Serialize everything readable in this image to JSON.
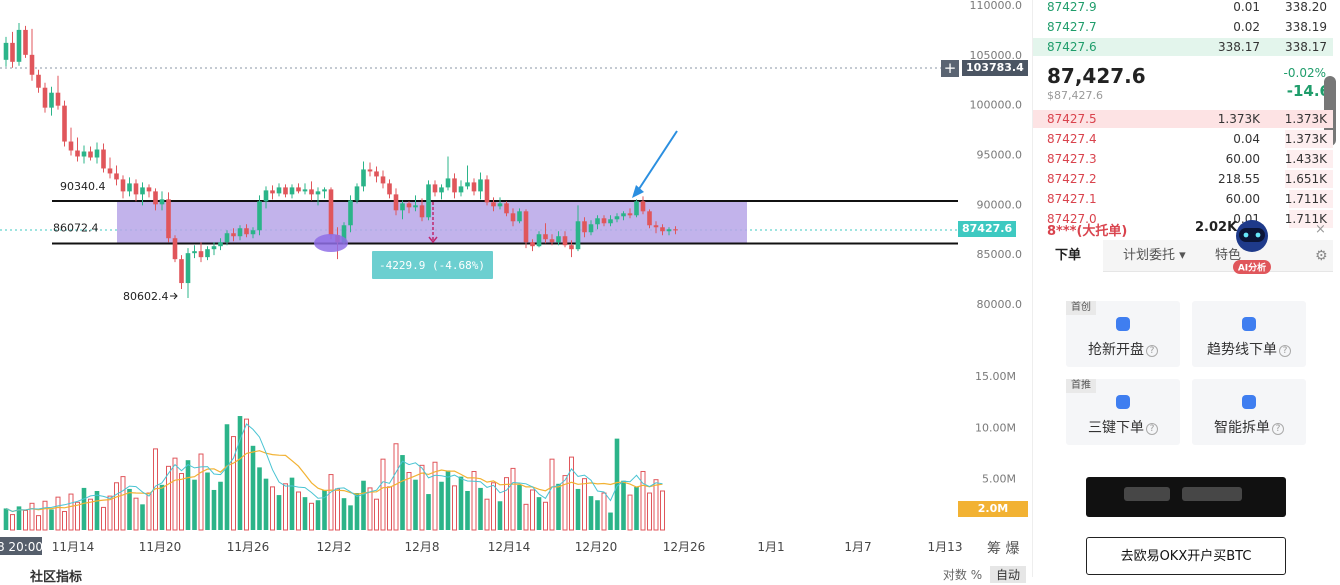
{
  "chart": {
    "price_axis": [
      "110000.0",
      "105000.0",
      "100000.0",
      "95000.0",
      "90000.0",
      "85000.0",
      "80000.0"
    ],
    "volume_axis": [
      "15.00M",
      "10.00M",
      "5.00M"
    ],
    "date_axis": [
      "8 20:00",
      "11月14",
      "11月20",
      "11月26",
      "12月2",
      "12月8",
      "12月14",
      "12月20",
      "12月26",
      "1月1",
      "1月7",
      "1月13"
    ],
    "current_price_tag": "87427.6",
    "crosshair_price_tag": "103783.4",
    "volume_tag": "2.0M",
    "range_high_label": "90340.4",
    "range_low_label": "86072.4",
    "low_marker_label": "80602.4",
    "measure_label": "-4229.9 (-4.68%)",
    "plus_icon": "+",
    "side_tools": "筹 爆",
    "bottom_left_label": "社区指标",
    "bottom_right_log": "对数",
    "bottom_right_pct": "%",
    "bottom_right_auto": "自动",
    "colors": {
      "up": "#2bb489",
      "down": "#e0565b",
      "zone": "#b7a6e8",
      "tag_blue": "#3ec9c1",
      "tag_orange": "#f2b233"
    }
  },
  "chart_data": {
    "type": "candlestick",
    "price_range": [
      78000,
      111000
    ],
    "volume_range": [
      0,
      16000000
    ],
    "notes_visible": [
      "90340.4",
      "86072.4",
      "80602.4",
      "-4229.9 (-4.68%)"
    ],
    "candles": [
      [
        104500,
        106800,
        103800,
        106200
      ],
      [
        106200,
        107300,
        103700,
        104300
      ],
      [
        104300,
        108200,
        103900,
        107500
      ],
      [
        107500,
        107900,
        104700,
        105000
      ],
      [
        105000,
        107600,
        102400,
        103000
      ],
      [
        103000,
        103500,
        101200,
        101700
      ],
      [
        101700,
        102200,
        99200,
        99700
      ],
      [
        99700,
        101800,
        98900,
        101200
      ],
      [
        101200,
        102900,
        99500,
        99900
      ],
      [
        99900,
        100400,
        95800,
        96300
      ],
      [
        96300,
        97700,
        94900,
        95400
      ],
      [
        95400,
        96700,
        94300,
        94800
      ],
      [
        94800,
        95900,
        94100,
        95300
      ],
      [
        95300,
        95800,
        94400,
        94700
      ],
      [
        94700,
        96200,
        94100,
        95500
      ],
      [
        95500,
        96100,
        93200,
        93600
      ],
      [
        93600,
        94700,
        92600,
        93100
      ],
      [
        93100,
        93900,
        91900,
        92500
      ],
      [
        92500,
        92900,
        90600,
        91300
      ],
      [
        91300,
        92700,
        90800,
        92100
      ],
      [
        92100,
        92500,
        90300,
        91000
      ],
      [
        91000,
        92200,
        89900,
        91700
      ],
      [
        91700,
        92000,
        90700,
        91300
      ],
      [
        91300,
        91600,
        89400,
        90000
      ],
      [
        90000,
        91300,
        89400,
        90500
      ],
      [
        90500,
        91200,
        86200,
        86600
      ],
      [
        86600,
        86900,
        84200,
        84500
      ],
      [
        84500,
        84900,
        81500,
        82100
      ],
      [
        82100,
        85600,
        80600,
        85100
      ],
      [
        85100,
        85900,
        84600,
        85300
      ],
      [
        85300,
        86200,
        84200,
        84700
      ],
      [
        84700,
        85800,
        84400,
        85500
      ],
      [
        85500,
        86200,
        84900,
        85800
      ],
      [
        85800,
        86600,
        85400,
        86200
      ],
      [
        86200,
        87400,
        85900,
        87100
      ],
      [
        87100,
        87600,
        86300,
        86800
      ],
      [
        86800,
        87900,
        86400,
        87600
      ],
      [
        87600,
        88000,
        86700,
        87000
      ],
      [
        87000,
        87700,
        86600,
        87400
      ],
      [
        87400,
        90900,
        86900,
        90300
      ],
      [
        90300,
        91800,
        89600,
        91400
      ],
      [
        91400,
        91900,
        90500,
        91100
      ],
      [
        91100,
        92100,
        90800,
        91700
      ],
      [
        91700,
        92000,
        90700,
        91000
      ],
      [
        91000,
        92000,
        90600,
        91700
      ],
      [
        91700,
        92100,
        91100,
        91300
      ],
      [
        91300,
        92100,
        91000,
        91500
      ],
      [
        91500,
        92300,
        90400,
        91000
      ],
      [
        91000,
        91700,
        89900,
        91300
      ],
      [
        91300,
        91700,
        90600,
        91500
      ],
      [
        91500,
        91700,
        86500,
        86900
      ],
      [
        86900,
        87700,
        84500,
        86200
      ],
      [
        86200,
        88200,
        86000,
        87900
      ],
      [
        87900,
        90900,
        87200,
        90400
      ],
      [
        90400,
        92100,
        90100,
        91800
      ],
      [
        91800,
        94300,
        91300,
        93500
      ],
      [
        93500,
        94200,
        92800,
        93300
      ],
      [
        93300,
        93800,
        92200,
        92800
      ],
      [
        92800,
        93400,
        91600,
        92100
      ],
      [
        92100,
        92500,
        90600,
        91000
      ],
      [
        91000,
        91600,
        88900,
        89400
      ],
      [
        89400,
        90400,
        88500,
        90100
      ],
      [
        90100,
        90300,
        89100,
        89700
      ],
      [
        89700,
        90900,
        89300,
        89900
      ],
      [
        89900,
        90600,
        88300,
        88700
      ],
      [
        88700,
        92400,
        88400,
        92000
      ],
      [
        92000,
        92400,
        90800,
        91200
      ],
      [
        91200,
        92000,
        90500,
        91700
      ],
      [
        91700,
        94800,
        91400,
        92600
      ],
      [
        92600,
        93100,
        90600,
        91200
      ],
      [
        91200,
        92400,
        90800,
        91800
      ],
      [
        91800,
        93900,
        91500,
        92200
      ],
      [
        92200,
        92600,
        90900,
        91300
      ],
      [
        91300,
        93200,
        90500,
        92500
      ],
      [
        92500,
        92900,
        89900,
        90200
      ],
      [
        90200,
        90700,
        89300,
        89800
      ],
      [
        89800,
        90700,
        89500,
        90100
      ],
      [
        90100,
        90300,
        88800,
        89100
      ],
      [
        89100,
        89600,
        87800,
        88300
      ],
      [
        88300,
        89600,
        88100,
        89300
      ],
      [
        89300,
        89500,
        85600,
        86200
      ],
      [
        86200,
        86500,
        85300,
        85800
      ],
      [
        85800,
        87300,
        85700,
        87000
      ],
      [
        87000,
        88100,
        86100,
        86500
      ],
      [
        86500,
        87000,
        85900,
        86200
      ],
      [
        86200,
        87300,
        85900,
        86800
      ],
      [
        86800,
        87300,
        85700,
        85900
      ],
      [
        85900,
        86400,
        84700,
        85500
      ],
      [
        85500,
        89900,
        85300,
        88300
      ],
      [
        88300,
        88700,
        86700,
        87200
      ],
      [
        87200,
        88400,
        86900,
        88000
      ],
      [
        88000,
        88900,
        87500,
        88600
      ],
      [
        88600,
        88900,
        87800,
        88100
      ],
      [
        88100,
        88900,
        87800,
        88500
      ],
      [
        88500,
        89100,
        88200,
        88800
      ],
      [
        88800,
        89300,
        88400,
        89100
      ],
      [
        89100,
        89600,
        88600,
        88900
      ],
      [
        88900,
        90500,
        88700,
        90300
      ],
      [
        90300,
        90800,
        89000,
        89300
      ],
      [
        89300,
        89500,
        87600,
        87900
      ],
      [
        87900,
        88300,
        87100,
        87700
      ],
      [
        87700,
        88000,
        86900,
        87300
      ],
      [
        87300,
        87700,
        86900,
        87500
      ],
      [
        87500,
        87800,
        87000,
        87400
      ]
    ],
    "volumes": [
      2.1,
      1.5,
      2.3,
      1.9,
      2.6,
      1.4,
      2.8,
      2.0,
      3.2,
      1.8,
      3.5,
      2.7,
      4.1,
      3.0,
      3.8,
      2.2,
      3.3,
      4.6,
      5.2,
      4.0,
      3.1,
      2.5,
      3.6,
      7.9,
      4.4,
      6.2,
      7.0,
      5.5,
      6.8,
      4.9,
      7.4,
      5.6,
      3.9,
      4.7,
      10.3,
      9.1,
      11.1,
      10.8,
      8.2,
      6.1,
      5.0,
      4.2,
      3.4,
      4.5,
      5.1,
      3.7,
      3.2,
      2.6,
      2.9,
      3.9,
      5.4,
      4.0,
      3.1,
      2.4,
      3.6,
      4.8,
      4.1,
      3.0,
      6.9,
      4.2,
      8.4,
      7.3,
      5.6,
      4.9,
      6.3,
      3.5,
      6.6,
      4.7,
      5.8,
      4.3,
      5.2,
      3.8,
      5.7,
      4.1,
      3.0,
      4.6,
      2.8,
      5.1,
      6.0,
      4.4,
      2.5,
      3.9,
      3.2,
      2.7,
      6.9,
      4.5,
      5.3,
      7.1,
      4.0,
      5.0,
      3.3,
      2.9,
      3.6,
      1.7,
      8.9,
      4.8,
      3.4,
      4.2,
      5.7,
      3.6,
      4.9,
      3.8
    ]
  },
  "orderbook": {
    "asks_top": [
      {
        "price": "87427.9",
        "qty": "0.01",
        "total": "338.20"
      },
      {
        "price": "87427.7",
        "qty": "0.02",
        "total": "338.19"
      },
      {
        "price": "87427.6",
        "qty": "338.17",
        "total": "338.17"
      }
    ],
    "mid": {
      "price": "87,427.6",
      "sub": "$87,427.6",
      "pct": "-0.02%",
      "change": "-14.6"
    },
    "bids": [
      {
        "price": "87427.5",
        "qty": "1.373K",
        "total": "1.373K"
      },
      {
        "price": "87427.4",
        "qty": "0.04",
        "total": "1.373K"
      },
      {
        "price": "87427.3",
        "qty": "60.00",
        "total": "1.433K"
      },
      {
        "price": "87427.2",
        "qty": "218.55",
        "total": "1.651K"
      },
      {
        "price": "87427.1",
        "qty": "60.00",
        "total": "1.711K"
      },
      {
        "price": "87427.0",
        "qty": "0.01",
        "total": "1.711K"
      }
    ],
    "big_order": {
      "label": "8***(大托单)",
      "value": "2.02K"
    }
  },
  "panel": {
    "ai_badge": "AI分析",
    "tabs": [
      "下单",
      "计划委托 ▾",
      "特色"
    ],
    "cards": [
      {
        "tag": "首创",
        "label": "抢新开盘"
      },
      {
        "tag": "",
        "label": "趋势线下单"
      },
      {
        "tag": "首推",
        "label": "三键下单"
      },
      {
        "tag": "",
        "label": "智能拆单"
      }
    ],
    "help_glyph": "?",
    "close_icon": "×",
    "settings_icon": "⚙",
    "cta": "去欧易OKX开户买BTC"
  }
}
